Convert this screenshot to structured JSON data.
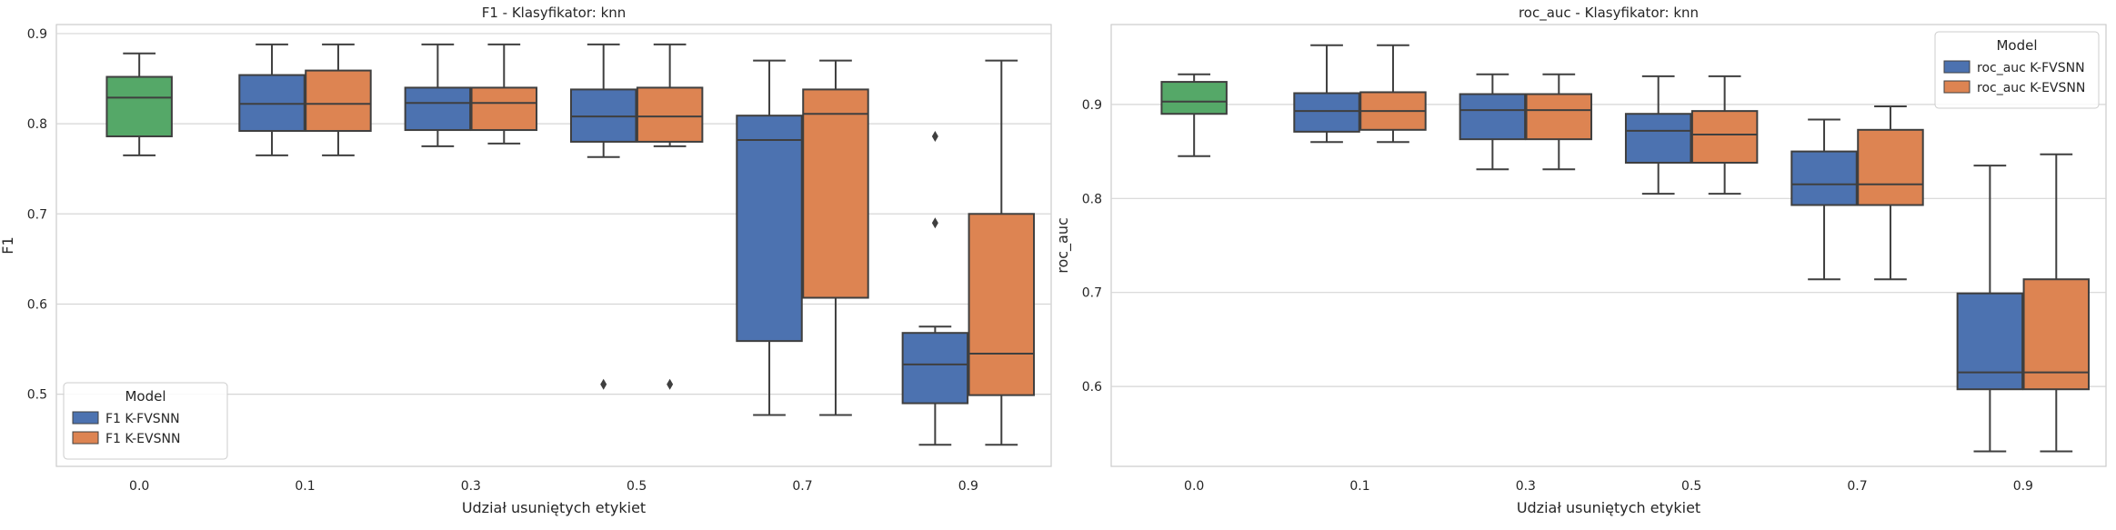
{
  "chart_data": [
    {
      "type": "boxplot",
      "title": "F1 - Klasyfikator: knn",
      "xlabel": "Udział usuniętych etykiet",
      "ylabel": "F1",
      "ylim": [
        0.42,
        0.91
      ],
      "yticks": [
        0.5,
        0.6,
        0.7,
        0.8,
        0.9
      ],
      "categories": [
        "0.0",
        "0.1",
        "0.3",
        "0.5",
        "0.7",
        "0.9"
      ],
      "grid": "horizontal",
      "legend": {
        "title": "Model",
        "position": "lower-left",
        "entries": [
          "F1 K-FVSNN",
          "F1 K-EVSNN"
        ]
      },
      "series": [
        {
          "name": "F1 K-FVSNN",
          "color": "#4c72b0",
          "boxes": [
            {
              "cat": 0,
              "wl": 0.765,
              "q1": 0.786,
              "med": 0.829,
              "q3": 0.852,
              "wh": 0.878,
              "color": "#55a868",
              "center": true
            },
            {
              "cat": 1,
              "wl": 0.765,
              "q1": 0.792,
              "med": 0.822,
              "q3": 0.854,
              "wh": 0.888
            },
            {
              "cat": 2,
              "wl": 0.775,
              "q1": 0.793,
              "med": 0.823,
              "q3": 0.84,
              "wh": 0.888
            },
            {
              "cat": 3,
              "wl": 0.763,
              "q1": 0.78,
              "med": 0.808,
              "q3": 0.838,
              "wh": 0.888,
              "fliers": [
                0.511
              ]
            },
            {
              "cat": 4,
              "wl": 0.477,
              "q1": 0.559,
              "med": 0.782,
              "q3": 0.809,
              "wh": 0.87
            },
            {
              "cat": 5,
              "wl": 0.444,
              "q1": 0.49,
              "med": 0.533,
              "q3": 0.568,
              "wh": 0.575,
              "fliers": [
                0.69,
                0.786
              ]
            }
          ]
        },
        {
          "name": "F1 K-EVSNN",
          "color": "#dd8452",
          "boxes": [
            {
              "cat": 1,
              "wl": 0.765,
              "q1": 0.792,
              "med": 0.822,
              "q3": 0.859,
              "wh": 0.888
            },
            {
              "cat": 2,
              "wl": 0.778,
              "q1": 0.793,
              "med": 0.823,
              "q3": 0.84,
              "wh": 0.888
            },
            {
              "cat": 3,
              "wl": 0.775,
              "q1": 0.78,
              "med": 0.808,
              "q3": 0.84,
              "wh": 0.888,
              "fliers": [
                0.511
              ]
            },
            {
              "cat": 4,
              "wl": 0.477,
              "q1": 0.607,
              "med": 0.811,
              "q3": 0.838,
              "wh": 0.87
            },
            {
              "cat": 5,
              "wl": 0.444,
              "q1": 0.499,
              "med": 0.545,
              "q3": 0.7,
              "wh": 0.87
            }
          ]
        }
      ]
    },
    {
      "type": "boxplot",
      "title": "roc_auc - Klasyfikator: knn",
      "xlabel": "Udział usuniętych etykiet",
      "ylabel": "roc_auc",
      "ylim": [
        0.515,
        0.985
      ],
      "yticks": [
        0.6,
        0.7,
        0.8,
        0.9
      ],
      "categories": [
        "0.0",
        "0.1",
        "0.3",
        "0.5",
        "0.7",
        "0.9"
      ],
      "grid": "horizontal",
      "legend": {
        "title": "Model",
        "position": "top-right",
        "entries": [
          "roc_auc K-FVSNN",
          "roc_auc K-EVSNN"
        ]
      },
      "series": [
        {
          "name": "roc_auc K-FVSNN",
          "color": "#4c72b0",
          "boxes": [
            {
              "cat": 0,
              "wl": 0.845,
              "q1": 0.89,
              "med": 0.903,
              "q3": 0.924,
              "wh": 0.932,
              "color": "#55a868",
              "center": true
            },
            {
              "cat": 1,
              "wl": 0.86,
              "q1": 0.871,
              "med": 0.893,
              "q3": 0.912,
              "wh": 0.963
            },
            {
              "cat": 2,
              "wl": 0.831,
              "q1": 0.863,
              "med": 0.894,
              "q3": 0.911,
              "wh": 0.932
            },
            {
              "cat": 3,
              "wl": 0.805,
              "q1": 0.838,
              "med": 0.872,
              "q3": 0.89,
              "wh": 0.93
            },
            {
              "cat": 4,
              "wl": 0.714,
              "q1": 0.793,
              "med": 0.815,
              "q3": 0.85,
              "wh": 0.884
            },
            {
              "cat": 5,
              "wl": 0.531,
              "q1": 0.597,
              "med": 0.615,
              "q3": 0.699,
              "wh": 0.835
            }
          ]
        },
        {
          "name": "roc_auc K-EVSNN",
          "color": "#dd8452",
          "boxes": [
            {
              "cat": 1,
              "wl": 0.86,
              "q1": 0.873,
              "med": 0.893,
              "q3": 0.913,
              "wh": 0.963
            },
            {
              "cat": 2,
              "wl": 0.831,
              "q1": 0.863,
              "med": 0.894,
              "q3": 0.911,
              "wh": 0.932
            },
            {
              "cat": 3,
              "wl": 0.805,
              "q1": 0.838,
              "med": 0.868,
              "q3": 0.893,
              "wh": 0.93
            },
            {
              "cat": 4,
              "wl": 0.714,
              "q1": 0.793,
              "med": 0.815,
              "q3": 0.873,
              "wh": 0.898
            },
            {
              "cat": 5,
              "wl": 0.531,
              "q1": 0.597,
              "med": 0.615,
              "q3": 0.714,
              "wh": 0.847
            }
          ]
        }
      ]
    }
  ]
}
